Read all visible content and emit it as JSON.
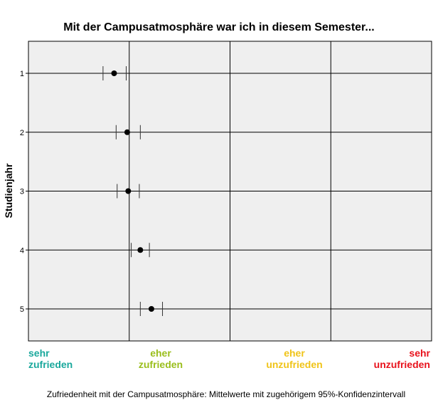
{
  "chart_data": {
    "type": "scatter",
    "title": "Mit der Campusatmosphäre war ich in diesem Semester...",
    "ylabel": "Studienjahr",
    "xlabel": "Zufriedenheit mit der Campusatmosphäre: Mittelwerte mit zugehörigem 95%-Konfidenzintervall",
    "categories": [
      "1",
      "2",
      "3",
      "4",
      "5"
    ],
    "xlim": [
      0.5,
      4.5
    ],
    "x_reference_lines": [
      1.5,
      2.5,
      3.5
    ],
    "grid": true,
    "values": [
      1.35,
      1.48,
      1.49,
      1.61,
      1.72
    ],
    "ci_lower": [
      1.24,
      1.37,
      1.38,
      1.52,
      1.61
    ],
    "ci_upper": [
      1.47,
      1.61,
      1.6,
      1.7,
      1.83
    ],
    "scale_labels": [
      {
        "text": "sehr\nzufrieden",
        "color": "#1aa89c"
      },
      {
        "text": "eher\nzufrieden",
        "color": "#9abe1c"
      },
      {
        "text": "eher\nunzufrieden",
        "color": "#f0c419"
      },
      {
        "text": "sehr\nunzufrieden",
        "color": "#e8121c"
      }
    ]
  }
}
